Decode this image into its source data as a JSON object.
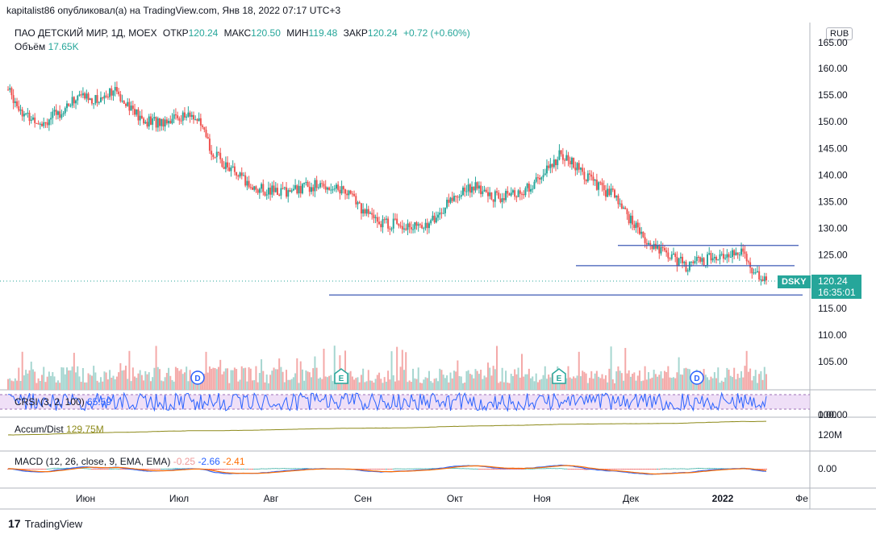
{
  "header": "kapitalist86 опубликовал(а) на TradingView.com, Янв 18, 2022 07:17 UTC+3",
  "legend": {
    "symbol": "ПАО ДЕТСКИЙ МИР, 1Д, MOEX",
    "open_label": "ОТКР",
    "open": "120.24",
    "high_label": "МАКС",
    "high": "120.50",
    "low_label": "МИН",
    "low": "119.48",
    "close_label": "ЗАКР",
    "close": "120.24",
    "change": "+0.72 (+0.60%)"
  },
  "volume": {
    "label": "Объём",
    "value": "17.65K"
  },
  "currency": "RUB",
  "last_price": {
    "symbol": "DSKY",
    "price": "120.24",
    "countdown": "16:35:01"
  },
  "panes": {
    "crsi": {
      "label": "CRSI (3, 2, 100)",
      "value": "65.59",
      "ticks": [
        "100.00",
        "0.00"
      ]
    },
    "accum": {
      "label": "Accum/Dist",
      "value": "129.75M",
      "tick": "120M"
    },
    "macd": {
      "label": "MACD (12, 26, close, 9, EMA, EMA)",
      "v1": "-0.25",
      "v2": "-2.66",
      "v3": "-2.41",
      "tick": "0.00"
    }
  },
  "events": [
    {
      "letter": "D",
      "color": "#2962ff"
    },
    {
      "letter": "E",
      "color": "#26a69a"
    },
    {
      "letter": "E",
      "color": "#26a69a"
    },
    {
      "letter": "D",
      "color": "#2962ff"
    }
  ],
  "footer": {
    "brand": "TradingView"
  },
  "chart_data": {
    "type": "candlestick",
    "title": "ПАО ДЕТСКИЙ МИР, 1Д, MOEX",
    "y_ticks": [
      "160.00",
      "155.00",
      "150.00",
      "145.00",
      "140.00",
      "135.00",
      "130.00",
      "125.00",
      "120.00",
      "115.00",
      "110.00",
      "105.00"
    ],
    "y_top_tick": "165.00",
    "ylim": [
      102,
      167
    ],
    "x_labels": [
      "Июн",
      "Июл",
      "Авг",
      "Сен",
      "Окт",
      "Ноя",
      "Дек",
      "2022",
      "Фе"
    ],
    "horizontal_levels": [
      126.8,
      123.0,
      117.5
    ],
    "close_path": [
      [
        0,
        156
      ],
      [
        10,
        151
      ],
      [
        20,
        150
      ],
      [
        30,
        152
      ],
      [
        40,
        155
      ],
      [
        50,
        154
      ],
      [
        58,
        156
      ],
      [
        66,
        154
      ],
      [
        75,
        150
      ],
      [
        85,
        150
      ],
      [
        95,
        151
      ],
      [
        105,
        151
      ],
      [
        115,
        144
      ],
      [
        125,
        141
      ],
      [
        135,
        138
      ],
      [
        145,
        137
      ],
      [
        158,
        137
      ],
      [
        170,
        138
      ],
      [
        180,
        138
      ],
      [
        190,
        137
      ],
      [
        200,
        133
      ],
      [
        210,
        131
      ],
      [
        220,
        131
      ],
      [
        230,
        130
      ],
      [
        240,
        132
      ],
      [
        250,
        136
      ],
      [
        260,
        138
      ],
      [
        270,
        136
      ],
      [
        280,
        136
      ],
      [
        290,
        137
      ],
      [
        300,
        140
      ],
      [
        310,
        144
      ],
      [
        320,
        141
      ],
      [
        330,
        138
      ],
      [
        340,
        136
      ],
      [
        350,
        131
      ],
      [
        360,
        127
      ],
      [
        370,
        125
      ],
      [
        380,
        123
      ],
      [
        390,
        124
      ],
      [
        400,
        125
      ],
      [
        410,
        126
      ],
      [
        418,
        122
      ],
      [
        425,
        120.24
      ]
    ]
  }
}
